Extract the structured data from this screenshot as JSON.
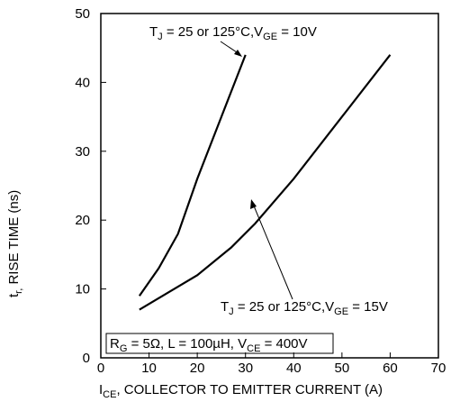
{
  "chart_data": {
    "type": "line",
    "y_label": [
      "t",
      "r,",
      " RISE TIME (ns)"
    ],
    "x_label": [
      "I",
      "CE",
      ", COLLECTOR TO EMITTER CURRENT (A)"
    ],
    "series": [
      {
        "name": [
          "T",
          "J",
          " = 25 or 125°C,V",
          "GE",
          " = 10V"
        ],
        "color": "#000000",
        "x": [
          8,
          12,
          16,
          20,
          25,
          30
        ],
        "values": [
          9,
          13,
          18,
          26,
          35,
          44
        ]
      },
      {
        "name": [
          "T",
          "J",
          " = 25 or 125°C,V",
          "GE",
          " = 15V"
        ],
        "color": "#000000",
        "x": [
          8,
          14,
          20,
          27,
          32,
          40,
          50,
          60
        ],
        "values": [
          7,
          9.5,
          12,
          16,
          19.5,
          26,
          35,
          44
        ]
      }
    ],
    "conditions": [
      "R",
      "G",
      " = 5Ω, L = 100µH, V",
      "CE",
      " = 400V"
    ],
    "xlim": [
      0,
      70
    ],
    "xticks": [
      0,
      10,
      20,
      30,
      40,
      50,
      60,
      70
    ],
    "ylim": [
      0,
      50
    ],
    "yticks": [
      0,
      10,
      20,
      30,
      40,
      50
    ]
  }
}
